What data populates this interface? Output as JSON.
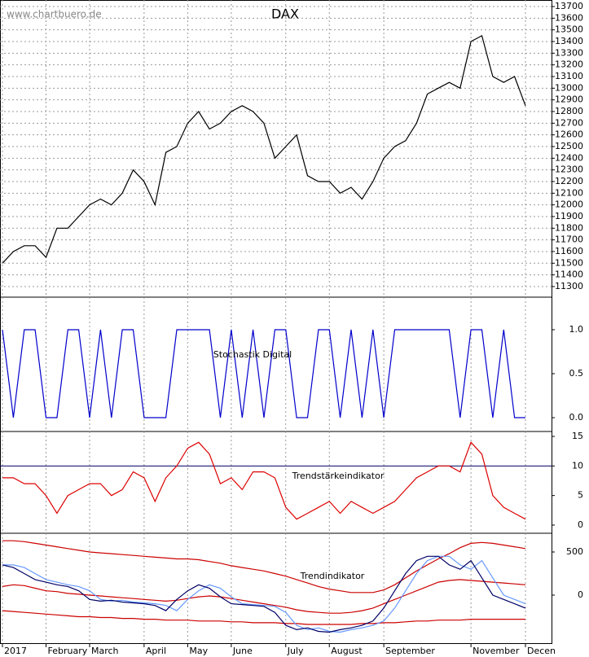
{
  "watermark": "www.chartbuero.de",
  "chart_data": [
    {
      "type": "line",
      "title": "DAX",
      "grid": true,
      "series": [
        {
          "color": "#000000",
          "values": [
            11500,
            11600,
            11650,
            11650,
            11550,
            11800,
            11800,
            11900,
            12000,
            12050,
            12000,
            12100,
            12300,
            12200,
            12000,
            12450,
            12500,
            12700,
            12800,
            12650,
            12700,
            12800,
            12850,
            12800,
            12700,
            12400,
            12500,
            12600,
            12250,
            12200,
            12200,
            12100,
            12150,
            12050,
            12200,
            12400,
            12500,
            12550,
            12700,
            12950,
            13000,
            13050,
            13000,
            13400,
            13450,
            13100,
            13050,
            13100,
            12850
          ]
        }
      ],
      "ylim": [
        11209,
        13756
      ],
      "yticks": [
        11300,
        11400,
        11500,
        11600,
        11700,
        11800,
        11900,
        12000,
        12100,
        12200,
        12300,
        12400,
        12500,
        12600,
        12700,
        12800,
        12900,
        13000,
        13100,
        13200,
        13300,
        13400,
        13500,
        13600,
        13700
      ]
    },
    {
      "type": "line",
      "title": "Stochastik Digital",
      "series": [
        {
          "color": "#0000cc",
          "values": [
            1,
            0,
            1,
            1,
            0,
            0,
            1,
            1,
            0,
            1,
            0,
            1,
            1,
            0,
            0,
            0,
            1,
            1,
            1,
            1,
            0,
            1,
            0,
            1,
            0,
            1,
            1,
            0,
            0,
            1,
            1,
            0,
            1,
            0,
            1,
            0,
            1,
            1,
            1,
            1,
            1,
            1,
            0,
            1,
            1,
            0,
            1,
            0,
            0
          ]
        }
      ],
      "ylim": [
        -0.157,
        1.37
      ],
      "yticks": [
        {
          "value": 0,
          "label": "0.0"
        },
        {
          "value": 0.5,
          "label": "0.5"
        },
        {
          "value": 1,
          "label": "1.0"
        }
      ]
    },
    {
      "type": "line",
      "title": "Trendstärkeindikator",
      "reference_line": 10,
      "series": [
        {
          "color": "#dd0000",
          "values": [
            8,
            8,
            7,
            7,
            5,
            2,
            5,
            6,
            7,
            7,
            5,
            6,
            9,
            8,
            4,
            8,
            10,
            13,
            14,
            12,
            7,
            8,
            6,
            9,
            9,
            8,
            3,
            1,
            2,
            3,
            4,
            2,
            4,
            3,
            2,
            3,
            4,
            6,
            8,
            9,
            10,
            10,
            9,
            14,
            12,
            5,
            3,
            2,
            1
          ]
        }
      ],
      "ylim": [
        -1.38,
        15.83
      ],
      "yticks": [
        0,
        5,
        10,
        15
      ]
    },
    {
      "type": "line",
      "title": "Trendindikator",
      "categories": [
        "2017",
        null,
        null,
        null,
        "February",
        null,
        null,
        null,
        "March",
        null,
        null,
        null,
        null,
        "April",
        null,
        null,
        null,
        "May",
        null,
        null,
        null,
        "June",
        null,
        null,
        null,
        null,
        "July",
        null,
        null,
        null,
        "August",
        null,
        null,
        null,
        null,
        "September",
        null,
        null,
        null,
        null,
        null,
        null,
        null,
        "November",
        null,
        null,
        null,
        null,
        "Decen"
      ],
      "series": [
        {
          "color": "#cc0000",
          "values": [
            630,
            630,
            620,
            600,
            580,
            560,
            540,
            520,
            500,
            490,
            480,
            470,
            460,
            450,
            440,
            430,
            420,
            420,
            410,
            390,
            370,
            340,
            320,
            300,
            280,
            250,
            220,
            180,
            140,
            100,
            70,
            50,
            30,
            30,
            30,
            60,
            120,
            200,
            280,
            350,
            420,
            480,
            550,
            600,
            610,
            600,
            580,
            560,
            540
          ]
        },
        {
          "color": "#cc0000",
          "values": [
            100,
            120,
            110,
            80,
            50,
            40,
            20,
            10,
            0,
            -10,
            -20,
            -30,
            -40,
            -50,
            -60,
            -70,
            -60,
            -40,
            -20,
            -10,
            -20,
            -40,
            -60,
            -80,
            -100,
            -120,
            -140,
            -170,
            -190,
            -200,
            -210,
            -210,
            -200,
            -180,
            -150,
            -100,
            -50,
            0,
            50,
            100,
            150,
            170,
            180,
            170,
            160,
            150,
            140,
            130,
            120
          ]
        },
        {
          "color": "#cc0000",
          "values": [
            -180,
            -190,
            -200,
            -210,
            -220,
            -230,
            -240,
            -250,
            -250,
            -260,
            -260,
            -270,
            -270,
            -280,
            -280,
            -290,
            -290,
            -290,
            -300,
            -300,
            -300,
            -310,
            -310,
            -320,
            -320,
            -320,
            -330,
            -330,
            -340,
            -340,
            -340,
            -340,
            -340,
            -330,
            -330,
            -320,
            -320,
            -310,
            -300,
            -300,
            -290,
            -290,
            -290,
            -280,
            -280,
            -280,
            -280,
            -280,
            -280
          ]
        },
        {
          "color": "#6699ff",
          "values": [
            350,
            350,
            320,
            250,
            180,
            150,
            120,
            100,
            50,
            -50,
            -70,
            -60,
            -80,
            -90,
            -100,
            -120,
            -180,
            -50,
            50,
            120,
            80,
            -20,
            -100,
            -110,
            -120,
            -130,
            -200,
            -350,
            -400,
            -380,
            -420,
            -430,
            -400,
            -380,
            -350,
            -300,
            -150,
            50,
            250,
            400,
            450,
            450,
            350,
            300,
            400,
            200,
            0,
            -50,
            -100
          ]
        },
        {
          "color": "#000066",
          "values": [
            350,
            320,
            250,
            180,
            150,
            120,
            100,
            50,
            -50,
            -70,
            -60,
            -80,
            -90,
            -100,
            -120,
            -180,
            -50,
            50,
            120,
            80,
            -20,
            -100,
            -110,
            -120,
            -130,
            -200,
            -350,
            -400,
            -380,
            -420,
            -430,
            -400,
            -380,
            -350,
            -300,
            -150,
            50,
            250,
            400,
            450,
            450,
            350,
            300,
            400,
            200,
            0,
            -50,
            -100,
            -150
          ]
        }
      ],
      "ylim": [
        -557,
        717
      ],
      "yticks": [
        0,
        500
      ]
    }
  ]
}
